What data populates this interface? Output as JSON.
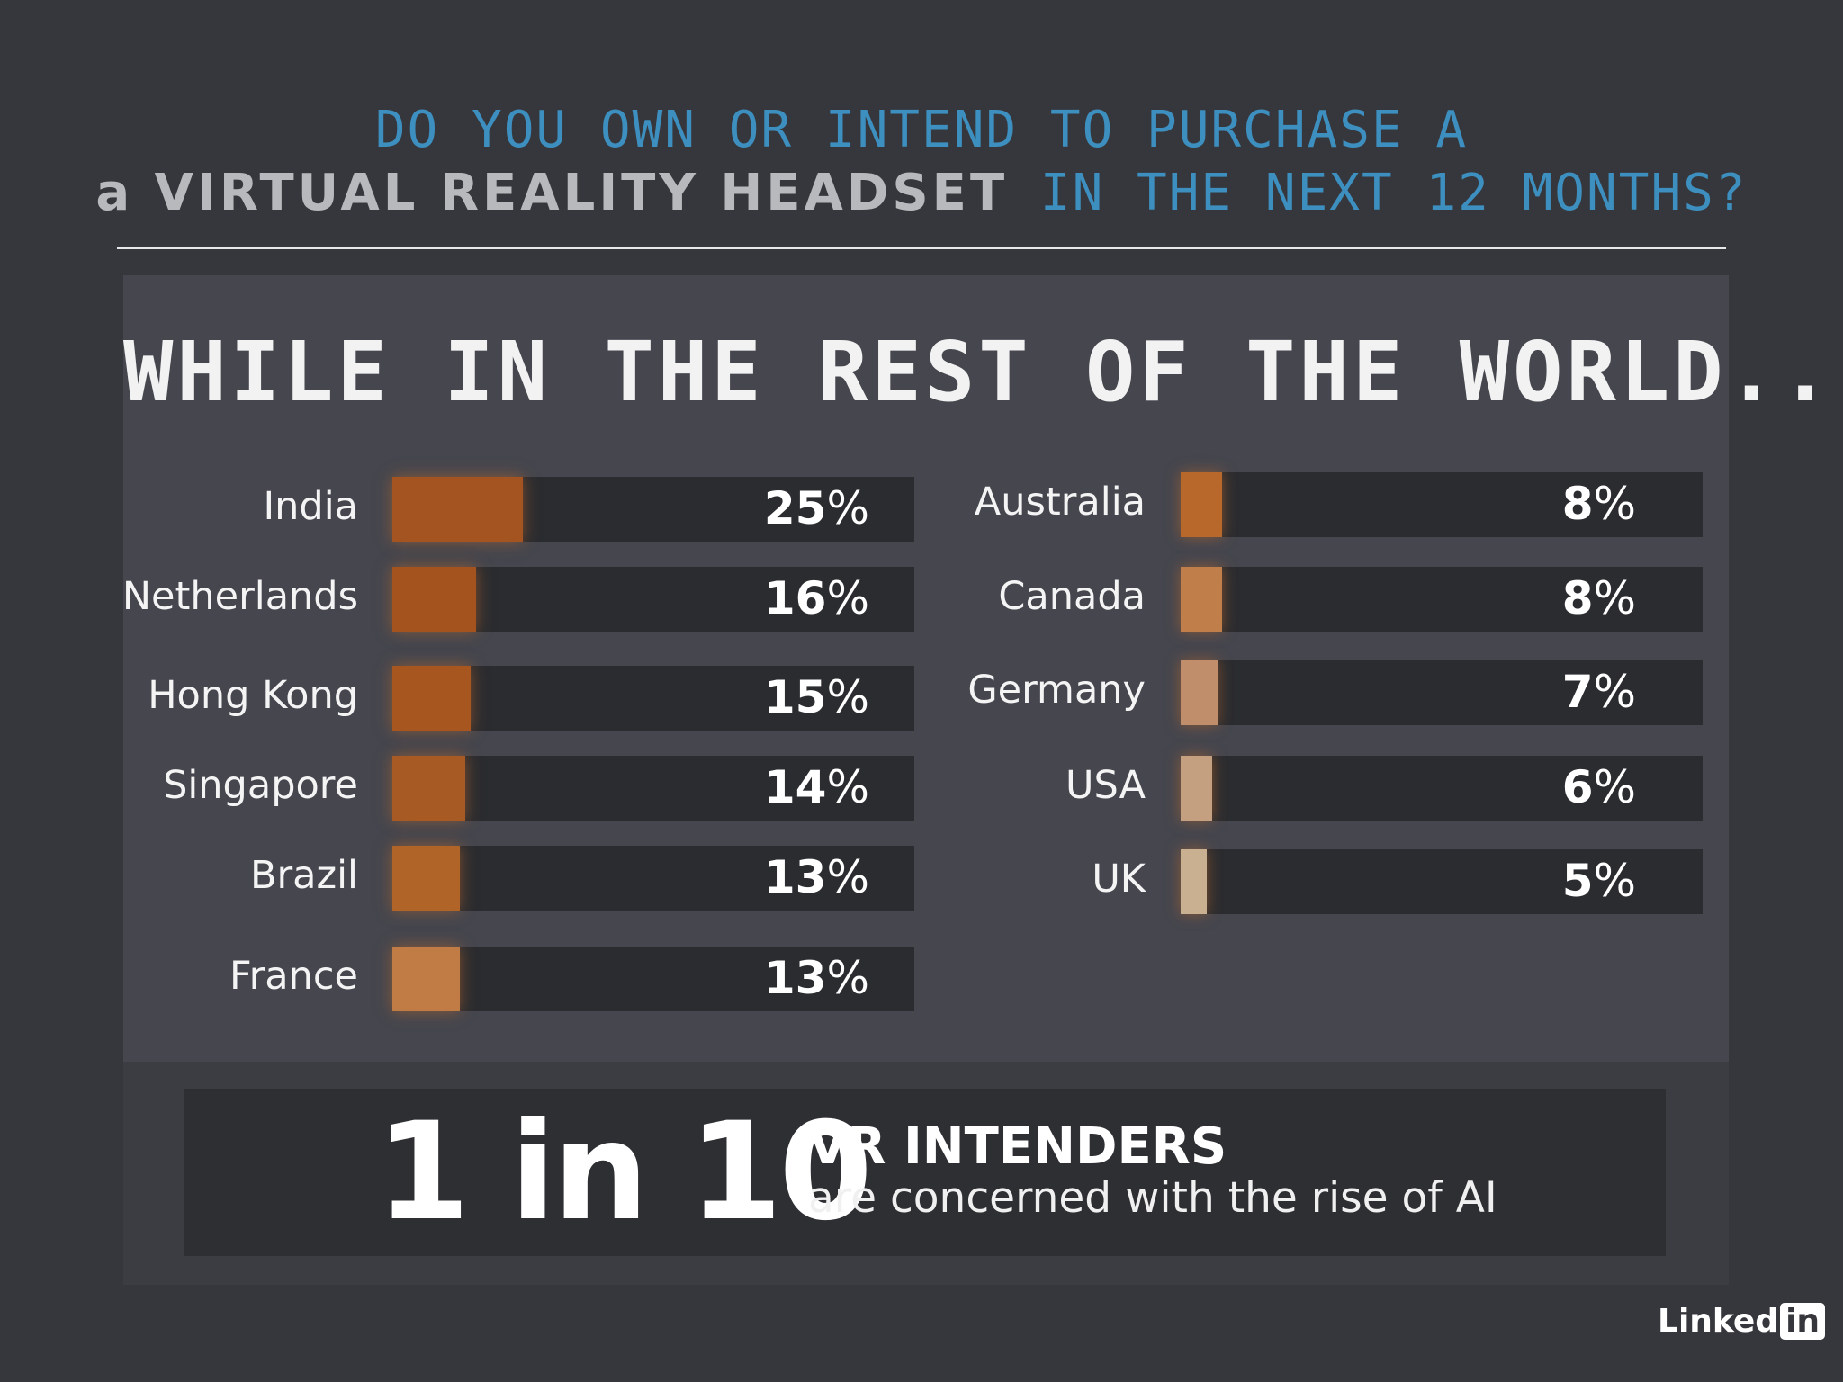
{
  "header": {
    "line1": "DO YOU OWN OR INTEND TO PURCHASE A",
    "line2_emphasis": "a VIRTUAL REALITY HEADSET",
    "line2_rest": "IN THE NEXT 12 MONTHS?"
  },
  "subtitle": "WHILE IN THE REST OF THE WORLD...",
  "colors": {
    "background": "#36373c",
    "panel": "#45464e",
    "track": "#2b2c30",
    "accent_blue": "#3d8fbf"
  },
  "chart_data": {
    "type": "bar",
    "orientation": "horizontal",
    "xlim": [
      0,
      100
    ],
    "value_suffix": "%",
    "columns": [
      {
        "categories": [
          "India",
          "Netherlands",
          "Hong Kong",
          "Singapore",
          "Brazil",
          "France"
        ],
        "values": [
          25,
          16,
          15,
          14,
          13,
          13
        ],
        "colors": [
          "#a45420",
          "#a4521e",
          "#a6561e",
          "#a85a24",
          "#b06428",
          "#c07c44"
        ]
      },
      {
        "categories": [
          "Australia",
          "Canada",
          "Germany",
          "USA",
          "UK"
        ],
        "values": [
          8,
          8,
          7,
          6,
          5
        ],
        "colors": [
          "#b8682a",
          "#c07e4a",
          "#c08e6a",
          "#c4a080",
          "#c8b090"
        ]
      }
    ]
  },
  "stat": {
    "big": "1 in 10",
    "headline": "VR INTENDERS",
    "sub": "are concerned with the rise of AI"
  },
  "logo": {
    "text": "Linked",
    "box": "in"
  }
}
